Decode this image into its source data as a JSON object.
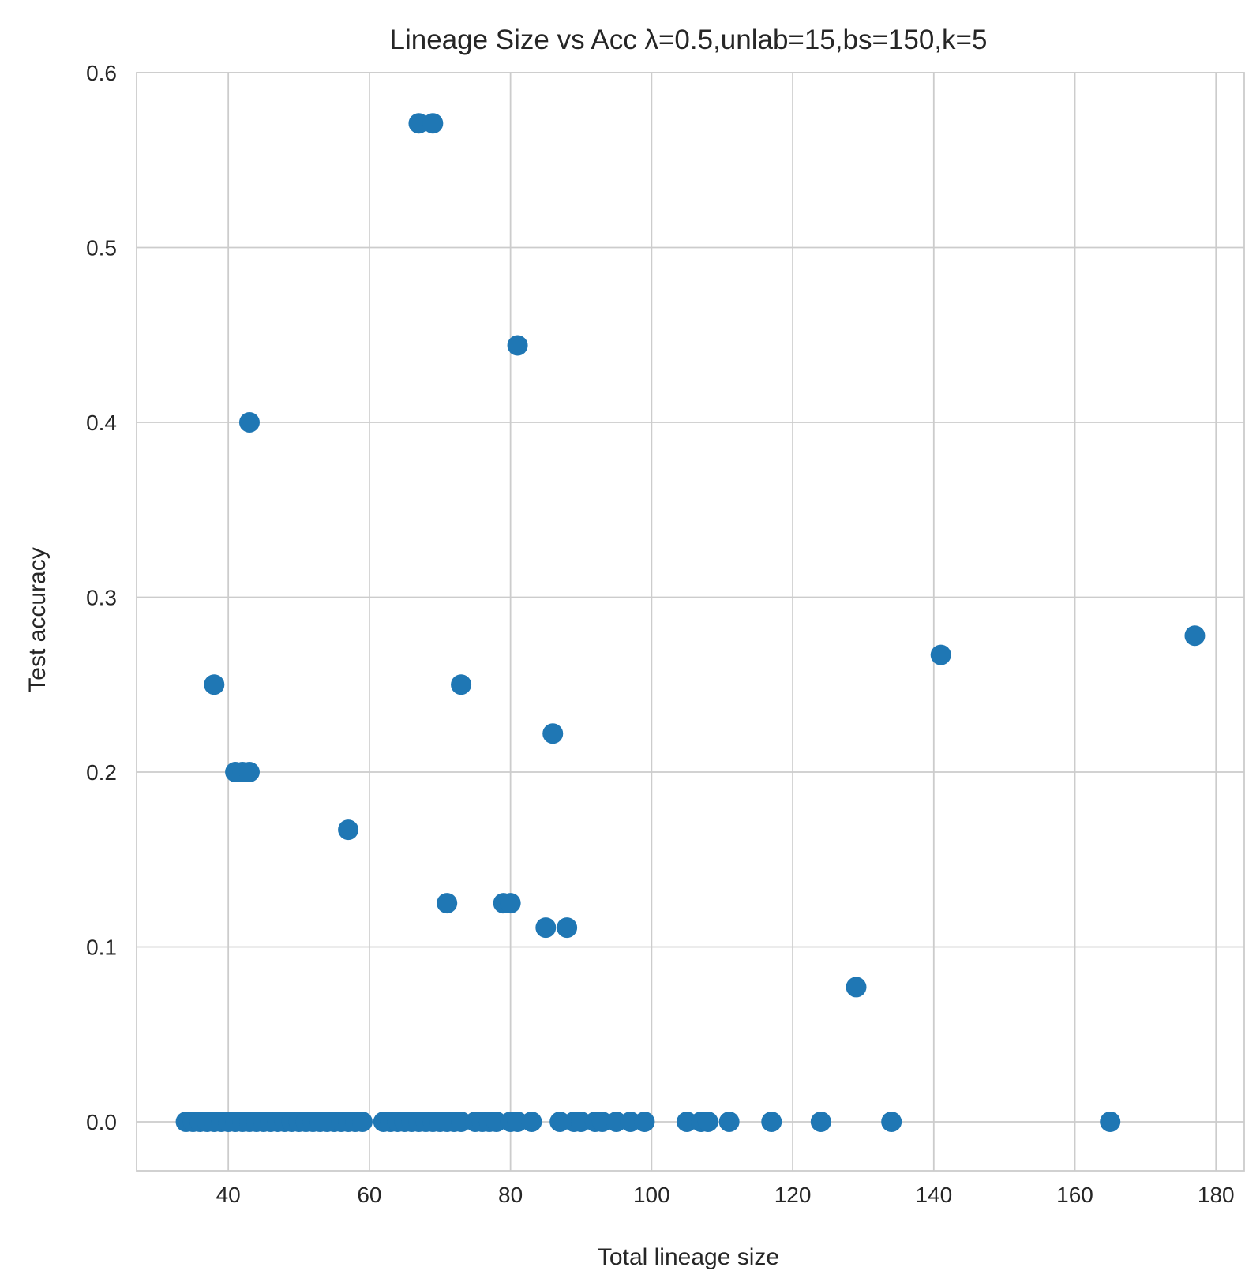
{
  "chart_data": {
    "type": "scatter",
    "title": "Lineage Size vs Acc λ=0.5,unlab=15,bs=150,k=5",
    "xlabel": "Total lineage size",
    "ylabel": "Test accuracy",
    "xlim": [
      27,
      184
    ],
    "ylim": [
      -0.028,
      0.6
    ],
    "xticks": [
      40,
      60,
      80,
      100,
      120,
      140,
      160,
      180
    ],
    "yticks": [
      0.0,
      0.1,
      0.2,
      0.3,
      0.4,
      0.5,
      0.6
    ],
    "xtick_labels": [
      "40",
      "60",
      "80",
      "100",
      "120",
      "140",
      "160",
      "180"
    ],
    "ytick_labels": [
      "0.0",
      "0.1",
      "0.2",
      "0.3",
      "0.4",
      "0.5",
      "0.6"
    ],
    "grid": true,
    "marker_color": "#1f77b4",
    "series": [
      {
        "points": [
          [
            67,
            0.571
          ],
          [
            69,
            0.571
          ],
          [
            81,
            0.444
          ],
          [
            43,
            0.4
          ],
          [
            177,
            0.278
          ],
          [
            141,
            0.267
          ],
          [
            38,
            0.25
          ],
          [
            73,
            0.25
          ],
          [
            86,
            0.222
          ],
          [
            41,
            0.2
          ],
          [
            42,
            0.2
          ],
          [
            43,
            0.2
          ],
          [
            57,
            0.167
          ],
          [
            71,
            0.125
          ],
          [
            79,
            0.125
          ],
          [
            80,
            0.125
          ],
          [
            85,
            0.111
          ],
          [
            88,
            0.111
          ],
          [
            129,
            0.077
          ],
          [
            34,
            0.0
          ],
          [
            35,
            0.0
          ],
          [
            36,
            0.0
          ],
          [
            37,
            0.0
          ],
          [
            38,
            0.0
          ],
          [
            39,
            0.0
          ],
          [
            40,
            0.0
          ],
          [
            41,
            0.0
          ],
          [
            42,
            0.0
          ],
          [
            43,
            0.0
          ],
          [
            44,
            0.0
          ],
          [
            45,
            0.0
          ],
          [
            46,
            0.0
          ],
          [
            47,
            0.0
          ],
          [
            48,
            0.0
          ],
          [
            49,
            0.0
          ],
          [
            50,
            0.0
          ],
          [
            51,
            0.0
          ],
          [
            52,
            0.0
          ],
          [
            53,
            0.0
          ],
          [
            54,
            0.0
          ],
          [
            55,
            0.0
          ],
          [
            56,
            0.0
          ],
          [
            57,
            0.0
          ],
          [
            58,
            0.0
          ],
          [
            59,
            0.0
          ],
          [
            62,
            0.0
          ],
          [
            63,
            0.0
          ],
          [
            64,
            0.0
          ],
          [
            65,
            0.0
          ],
          [
            66,
            0.0
          ],
          [
            67,
            0.0
          ],
          [
            68,
            0.0
          ],
          [
            69,
            0.0
          ],
          [
            70,
            0.0
          ],
          [
            71,
            0.0
          ],
          [
            72,
            0.0
          ],
          [
            73,
            0.0
          ],
          [
            75,
            0.0
          ],
          [
            76,
            0.0
          ],
          [
            77,
            0.0
          ],
          [
            78,
            0.0
          ],
          [
            80,
            0.0
          ],
          [
            81,
            0.0
          ],
          [
            83,
            0.0
          ],
          [
            87,
            0.0
          ],
          [
            89,
            0.0
          ],
          [
            90,
            0.0
          ],
          [
            92,
            0.0
          ],
          [
            93,
            0.0
          ],
          [
            95,
            0.0
          ],
          [
            97,
            0.0
          ],
          [
            99,
            0.0
          ],
          [
            105,
            0.0
          ],
          [
            107,
            0.0
          ],
          [
            108,
            0.0
          ],
          [
            111,
            0.0
          ],
          [
            117,
            0.0
          ],
          [
            124,
            0.0
          ],
          [
            134,
            0.0
          ],
          [
            165,
            0.0
          ]
        ]
      }
    ]
  }
}
